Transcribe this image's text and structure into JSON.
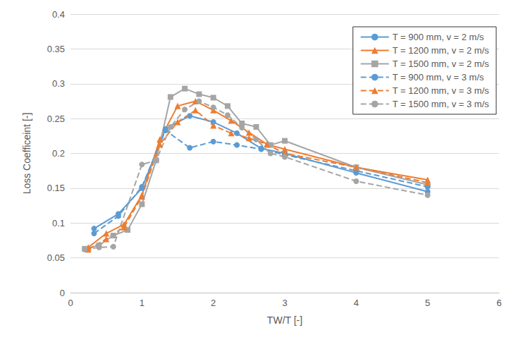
{
  "chart_data": {
    "type": "line",
    "x_label": "TW/T [-]",
    "y_label": "Loss Coefficeint [-]",
    "xlim": [
      0,
      6
    ],
    "xticks": [
      0,
      1,
      2,
      3,
      4,
      5,
      6
    ],
    "ylim": [
      0,
      0.4
    ],
    "yticks": [
      0,
      0.05,
      0.1,
      0.15,
      0.2,
      0.25,
      0.3,
      0.35,
      0.4
    ],
    "grid": true,
    "legend": "upper right",
    "series": [
      {
        "name": "T = 900 mm, v = 2 m/s",
        "color": "#5B9BD5",
        "marker": "circle",
        "line_style": "solid",
        "x": [
          0.33,
          0.67,
          1.0,
          1.33,
          1.67,
          2.0,
          2.33,
          2.67,
          3.0,
          4.0,
          5.0
        ],
        "values": [
          0.092,
          0.113,
          0.15,
          0.235,
          0.254,
          0.245,
          0.229,
          0.207,
          0.2,
          0.172,
          0.145
        ]
      },
      {
        "name": "T = 1200 mm, v = 2 m/s",
        "color": "#ED7D31",
        "marker": "triangle",
        "line_style": "solid",
        "x": [
          0.25,
          0.5,
          0.75,
          1.0,
          1.25,
          1.5,
          1.75,
          2.0,
          2.25,
          2.5,
          2.75,
          3.0,
          4.0,
          5.0
        ],
        "values": [
          0.065,
          0.085,
          0.098,
          0.14,
          0.22,
          0.268,
          0.275,
          0.262,
          0.247,
          0.23,
          0.213,
          0.206,
          0.18,
          0.162
        ]
      },
      {
        "name": "T = 1500 mm, v = 2 m/s",
        "color": "#A5A5A5",
        "marker": "square",
        "line_style": "solid",
        "x": [
          0.2,
          0.4,
          0.6,
          0.8,
          1.0,
          1.2,
          1.4,
          1.6,
          1.8,
          2.0,
          2.2,
          2.4,
          2.6,
          2.8,
          3.0,
          4.0,
          5.0
        ],
        "values": [
          0.063,
          0.068,
          0.082,
          0.09,
          0.127,
          0.19,
          0.281,
          0.293,
          0.285,
          0.28,
          0.268,
          0.243,
          0.238,
          0.212,
          0.218,
          0.18,
          0.155
        ]
      },
      {
        "name": "T = 900 mm, v = 3 m/s",
        "color": "#5B9BD5",
        "marker": "circle",
        "line_style": "dashed",
        "x": [
          0.33,
          0.67,
          1.0,
          1.33,
          1.67,
          2.0,
          2.33,
          2.67,
          3.0,
          4.0,
          5.0
        ],
        "values": [
          0.085,
          0.11,
          0.152,
          0.233,
          0.208,
          0.217,
          0.212,
          0.206,
          0.198,
          0.175,
          0.152
        ]
      },
      {
        "name": "T = 1200 mm, v = 3 m/s",
        "color": "#ED7D31",
        "marker": "triangle",
        "line_style": "dashed",
        "x": [
          0.25,
          0.5,
          0.75,
          1.0,
          1.25,
          1.5,
          1.75,
          2.0,
          2.25,
          2.5,
          2.75,
          3.0,
          4.0,
          5.0
        ],
        "values": [
          0.062,
          0.077,
          0.094,
          0.138,
          0.213,
          0.245,
          0.262,
          0.24,
          0.229,
          0.222,
          0.213,
          0.2,
          0.18,
          0.158
        ]
      },
      {
        "name": "T = 1500 mm, v = 3 m/s",
        "color": "#A5A5A5",
        "marker": "circle",
        "line_style": "dashed",
        "x": [
          0.2,
          0.4,
          0.6,
          1.0,
          1.2,
          1.4,
          1.6,
          1.8,
          2.0,
          2.2,
          2.4,
          2.6,
          2.8,
          3.0,
          4.0,
          5.0
        ],
        "values": [
          0.062,
          0.065,
          0.066,
          0.184,
          0.19,
          0.238,
          0.263,
          0.275,
          0.266,
          0.255,
          0.237,
          0.22,
          0.2,
          0.195,
          0.16,
          0.14
        ]
      }
    ]
  }
}
